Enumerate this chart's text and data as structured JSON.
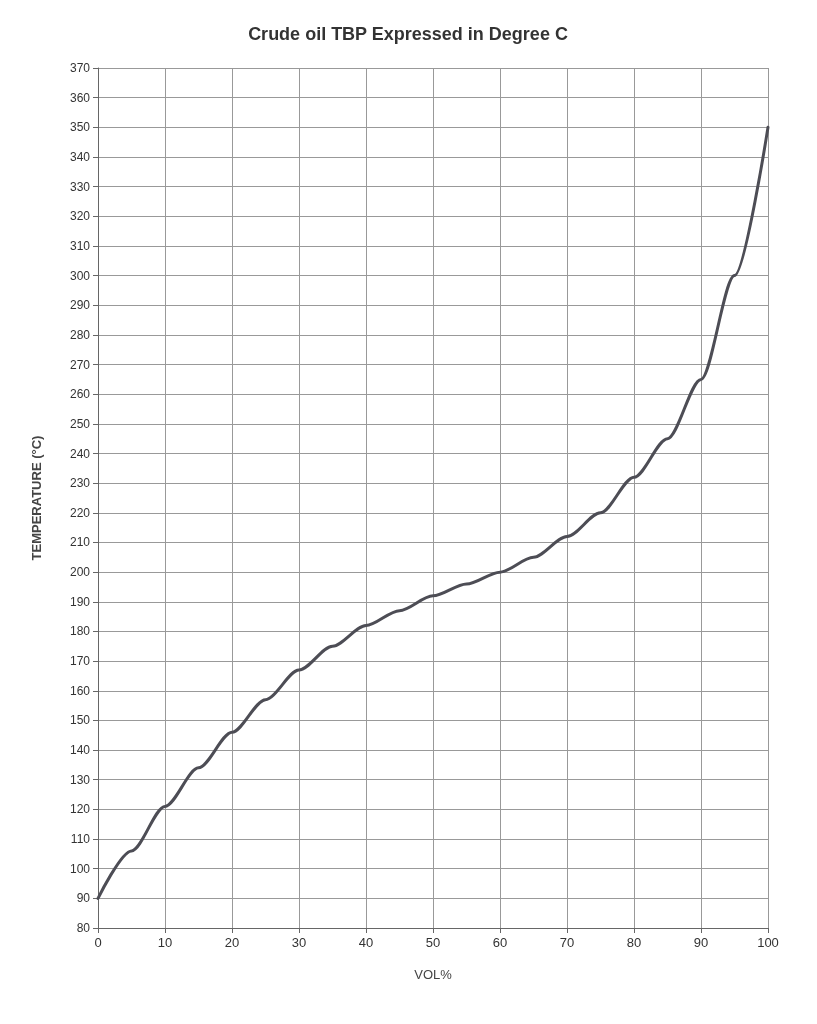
{
  "chart_data": {
    "type": "line",
    "title": "Crude oil TBP Expressed in Degree C",
    "xlabel": "VOL%",
    "ylabel": "TEMPERATURE (°C)",
    "x": [
      0,
      5,
      10,
      15,
      20,
      25,
      30,
      35,
      40,
      45,
      50,
      55,
      60,
      65,
      70,
      75,
      80,
      85,
      90,
      95,
      100
    ],
    "series": [
      {
        "color": "#4d4d55",
        "values": [
          90,
          106,
          121,
          134,
          146,
          157,
          167,
          175,
          182,
          187,
          192,
          196,
          200,
          205,
          212,
          220,
          232,
          245,
          265,
          300,
          350
        ]
      }
    ],
    "xlim": [
      0,
      100
    ],
    "xticks": [
      0,
      10,
      20,
      30,
      40,
      50,
      60,
      70,
      80,
      90,
      100
    ],
    "ylim": [
      80,
      370
    ],
    "yticks": [
      80,
      90,
      100,
      110,
      120,
      130,
      140,
      150,
      160,
      170,
      180,
      190,
      200,
      210,
      220,
      230,
      240,
      250,
      260,
      270,
      280,
      290,
      300,
      310,
      320,
      330,
      340,
      350,
      360,
      370
    ],
    "grid": true,
    "marker": "none",
    "line_style": "solid"
  }
}
